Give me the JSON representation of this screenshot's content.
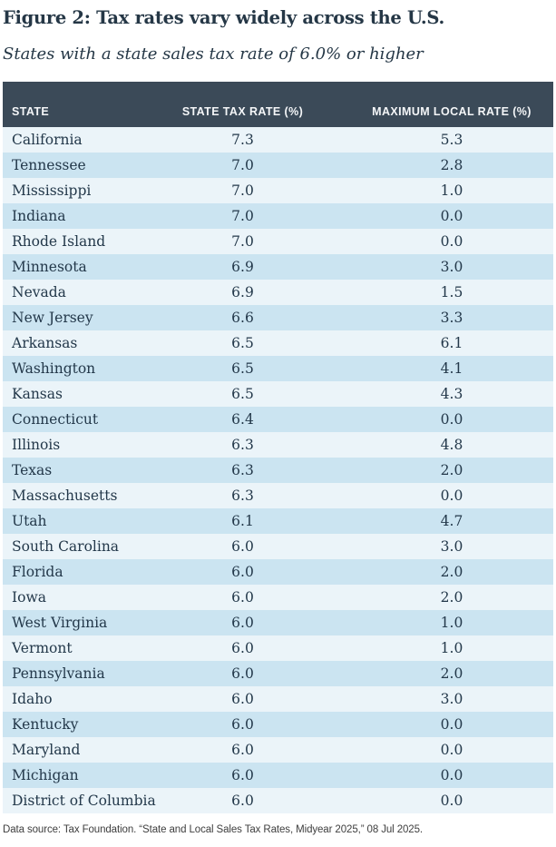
{
  "header": {
    "title": "Figure 2: Tax rates vary widely across the U.S.",
    "subtitle": "States with a state sales tax rate of 6.0% or higher"
  },
  "table": {
    "columns": [
      "STATE",
      "STATE TAX RATE (%)",
      "MAXIMUM LOCAL RATE (%)"
    ],
    "rows": [
      {
        "state": "California",
        "state_rate": "7.3",
        "max_local_rate": "5.3"
      },
      {
        "state": "Tennessee",
        "state_rate": "7.0",
        "max_local_rate": "2.8"
      },
      {
        "state": "Mississippi",
        "state_rate": "7.0",
        "max_local_rate": "1.0"
      },
      {
        "state": "Indiana",
        "state_rate": "7.0",
        "max_local_rate": "0.0"
      },
      {
        "state": "Rhode Island",
        "state_rate": "7.0",
        "max_local_rate": "0.0"
      },
      {
        "state": "Minnesota",
        "state_rate": "6.9",
        "max_local_rate": "3.0"
      },
      {
        "state": "Nevada",
        "state_rate": "6.9",
        "max_local_rate": "1.5"
      },
      {
        "state": "New Jersey",
        "state_rate": "6.6",
        "max_local_rate": "3.3"
      },
      {
        "state": "Arkansas",
        "state_rate": "6.5",
        "max_local_rate": "6.1"
      },
      {
        "state": "Washington",
        "state_rate": "6.5",
        "max_local_rate": "4.1"
      },
      {
        "state": "Kansas",
        "state_rate": "6.5",
        "max_local_rate": "4.3"
      },
      {
        "state": "Connecticut",
        "state_rate": "6.4",
        "max_local_rate": "0.0"
      },
      {
        "state": "Illinois",
        "state_rate": "6.3",
        "max_local_rate": "4.8"
      },
      {
        "state": "Texas",
        "state_rate": "6.3",
        "max_local_rate": "2.0"
      },
      {
        "state": "Massachusetts",
        "state_rate": "6.3",
        "max_local_rate": "0.0"
      },
      {
        "state": "Utah",
        "state_rate": "6.1",
        "max_local_rate": "4.7"
      },
      {
        "state": "South Carolina",
        "state_rate": "6.0",
        "max_local_rate": "3.0"
      },
      {
        "state": "Florida",
        "state_rate": "6.0",
        "max_local_rate": "2.0"
      },
      {
        "state": "Iowa",
        "state_rate": "6.0",
        "max_local_rate": "2.0"
      },
      {
        "state": "West Virginia",
        "state_rate": "6.0",
        "max_local_rate": "1.0"
      },
      {
        "state": "Vermont",
        "state_rate": "6.0",
        "max_local_rate": "1.0"
      },
      {
        "state": "Pennsylvania",
        "state_rate": "6.0",
        "max_local_rate": "2.0"
      },
      {
        "state": "Idaho",
        "state_rate": "6.0",
        "max_local_rate": "3.0"
      },
      {
        "state": "Kentucky",
        "state_rate": "6.0",
        "max_local_rate": "0.0"
      },
      {
        "state": "Maryland",
        "state_rate": "6.0",
        "max_local_rate": "0.0"
      },
      {
        "state": "Michigan",
        "state_rate": "6.0",
        "max_local_rate": "0.0"
      },
      {
        "state": "District of Columbia",
        "state_rate": "6.0",
        "max_local_rate": "0.0"
      }
    ]
  },
  "footer": {
    "source": "Data source: Tax Foundation. “State and Local Sales Tax Rates, Midyear 2025,” 08 Jul 2025."
  },
  "colors": {
    "header_bg": "#3b4a58",
    "header_text": "#f4f6f8",
    "row_light": "#ebf4f9",
    "row_blue": "#cbe4f1",
    "title_text": "#253746",
    "cell_text": "#23384a",
    "source_text": "#3e3e3e"
  },
  "chart_data": {
    "type": "table",
    "title": "Figure 2: Tax rates vary widely across the U.S.",
    "subtitle": "States with a state sales tax rate of 6.0% or higher",
    "columns": [
      "STATE",
      "STATE TAX RATE (%)",
      "MAXIMUM LOCAL RATE (%)"
    ],
    "rows": [
      [
        "California",
        7.3,
        5.3
      ],
      [
        "Tennessee",
        7.0,
        2.8
      ],
      [
        "Mississippi",
        7.0,
        1.0
      ],
      [
        "Indiana",
        7.0,
        0.0
      ],
      [
        "Rhode Island",
        7.0,
        0.0
      ],
      [
        "Minnesota",
        6.9,
        3.0
      ],
      [
        "Nevada",
        6.9,
        1.5
      ],
      [
        "New Jersey",
        6.6,
        3.3
      ],
      [
        "Arkansas",
        6.5,
        6.1
      ],
      [
        "Washington",
        6.5,
        4.1
      ],
      [
        "Kansas",
        6.5,
        4.3
      ],
      [
        "Connecticut",
        6.4,
        0.0
      ],
      [
        "Illinois",
        6.3,
        4.8
      ],
      [
        "Texas",
        6.3,
        2.0
      ],
      [
        "Massachusetts",
        6.3,
        0.0
      ],
      [
        "Utah",
        6.1,
        4.7
      ],
      [
        "South Carolina",
        6.0,
        3.0
      ],
      [
        "Florida",
        6.0,
        2.0
      ],
      [
        "Iowa",
        6.0,
        2.0
      ],
      [
        "West Virginia",
        6.0,
        1.0
      ],
      [
        "Vermont",
        6.0,
        1.0
      ],
      [
        "Pennsylvania",
        6.0,
        2.0
      ],
      [
        "Idaho",
        6.0,
        3.0
      ],
      [
        "Kentucky",
        6.0,
        0.0
      ],
      [
        "Maryland",
        6.0,
        0.0
      ],
      [
        "Michigan",
        6.0,
        0.0
      ],
      [
        "District of Columbia",
        6.0,
        0.0
      ]
    ],
    "source": "Data source: Tax Foundation. “State and Local Sales Tax Rates, Midyear 2025,” 08 Jul 2025."
  }
}
